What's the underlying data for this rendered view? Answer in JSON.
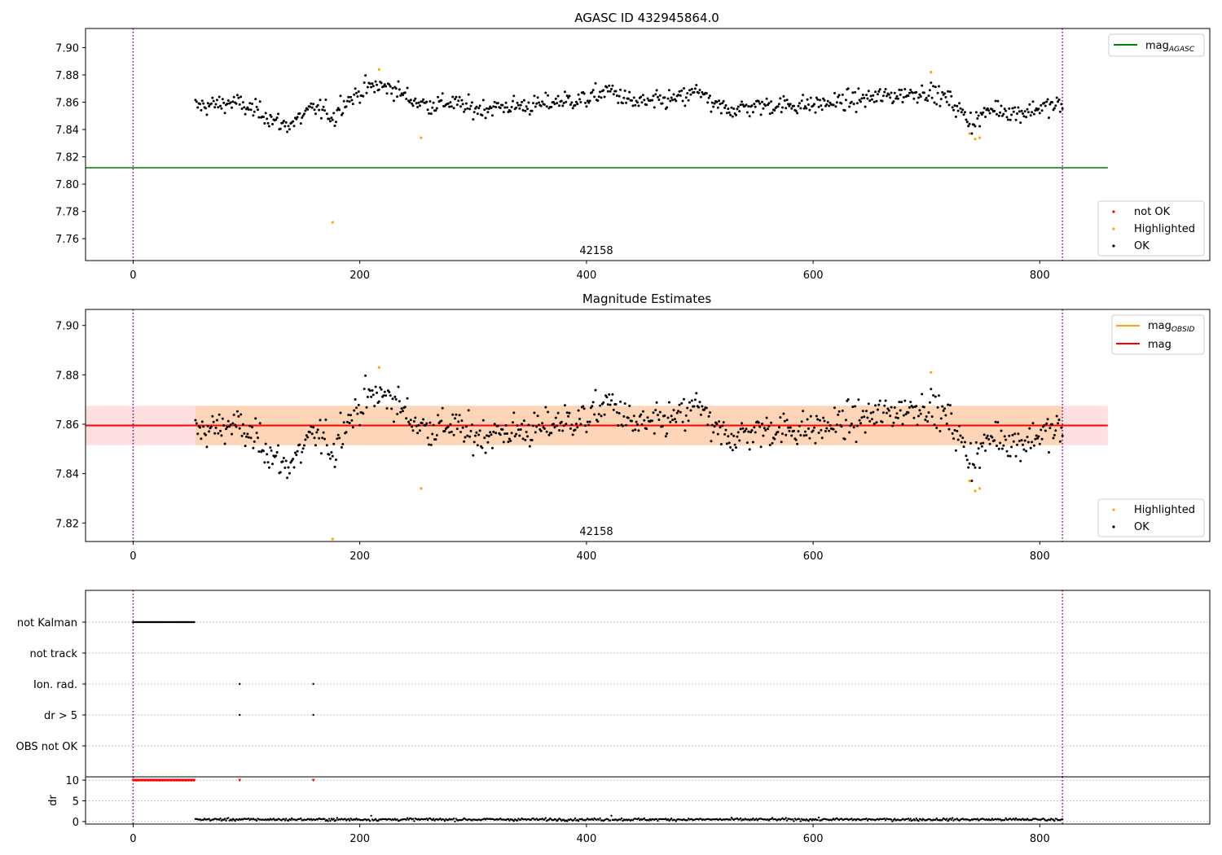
{
  "chart_data": [
    {
      "type": "scatter",
      "title": "AGASC ID 432945864.0",
      "xlim": [
        -42,
        950
      ],
      "ylim": [
        7.744,
        7.914
      ],
      "xticks": [
        0,
        200,
        400,
        600,
        800
      ],
      "yticks": [
        7.76,
        7.78,
        7.8,
        7.82,
        7.84,
        7.86,
        7.88,
        7.9
      ],
      "ytick_labels": [
        "7.76",
        "7.78",
        "7.80",
        "7.82",
        "7.84",
        "7.86",
        "7.88",
        "7.90"
      ],
      "xtick_labels": [
        "0",
        "200",
        "400",
        "600",
        "800"
      ],
      "obsid_label": "42158",
      "vlines": [
        0,
        820
      ],
      "mag_agasc": 7.812,
      "hline_xrange": [
        -42,
        860
      ],
      "legend_lines": [
        {
          "name": "mag",
          "sub": "AGASC",
          "color": "#008000"
        }
      ],
      "legend_points": [
        {
          "name": "not OK",
          "color": "#ff0000"
        },
        {
          "name": "Highlighted",
          "color": "#ffa500"
        },
        {
          "name": "OK",
          "color": "#000000"
        }
      ],
      "series": [
        {
          "name": "OK",
          "color": "#000000",
          "profile": [
            [
              55,
              7.857
            ],
            [
              70,
              7.858
            ],
            [
              90,
              7.86
            ],
            [
              100,
              7.856
            ],
            [
              115,
              7.852
            ],
            [
              125,
              7.846
            ],
            [
              135,
              7.843
            ],
            [
              145,
              7.847
            ],
            [
              160,
              7.856
            ],
            [
              170,
              7.853
            ],
            [
              178,
              7.848
            ],
            [
              182,
              7.858
            ],
            [
              195,
              7.864
            ],
            [
              205,
              7.87
            ],
            [
              215,
              7.872
            ],
            [
              230,
              7.87
            ],
            [
              245,
              7.862
            ],
            [
              260,
              7.858
            ],
            [
              280,
              7.86
            ],
            [
              300,
              7.855
            ],
            [
              330,
              7.857
            ],
            [
              360,
              7.858
            ],
            [
              375,
              7.861
            ],
            [
              400,
              7.862
            ],
            [
              420,
              7.869
            ],
            [
              440,
              7.86
            ],
            [
              460,
              7.86
            ],
            [
              490,
              7.864
            ],
            [
              500,
              7.87
            ],
            [
              510,
              7.857
            ],
            [
              530,
              7.855
            ],
            [
              560,
              7.858
            ],
            [
              600,
              7.858
            ],
            [
              640,
              7.862
            ],
            [
              680,
              7.866
            ],
            [
              700,
              7.868
            ],
            [
              720,
              7.862
            ],
            [
              740,
              7.845
            ],
            [
              760,
              7.856
            ],
            [
              780,
              7.852
            ],
            [
              800,
              7.856
            ],
            [
              820,
              7.858
            ]
          ]
        },
        {
          "name": "Highlighted",
          "color": "#ffa500",
          "x": [
            176,
            217,
            254,
            704,
            738,
            743,
            747
          ],
          "y": [
            7.772,
            7.884,
            7.834,
            7.882,
            7.837,
            7.833,
            7.834
          ]
        }
      ]
    },
    {
      "type": "scatter",
      "title": "Magnitude Estimates",
      "xlim": [
        -42,
        950
      ],
      "ylim": [
        7.8125,
        7.9065
      ],
      "xticks": [
        0,
        200,
        400,
        600,
        800
      ],
      "yticks": [
        7.82,
        7.84,
        7.86,
        7.88,
        7.9
      ],
      "ytick_labels": [
        "7.82",
        "7.84",
        "7.86",
        "7.88",
        "7.90"
      ],
      "xtick_labels": [
        "0",
        "200",
        "400",
        "600",
        "800"
      ],
      "obsid_label": "42158",
      "vlines": [
        0,
        820
      ],
      "mag": 7.8595,
      "mag_band_outer": [
        7.8515,
        7.8675
      ],
      "mag_band_inner": [
        7.8515,
        7.8675
      ],
      "mag_band_inner_xrange": [
        55,
        820
      ],
      "hline_xrange": [
        -42,
        860
      ],
      "legend_lines": [
        {
          "name": "mag",
          "sub": "OBSID",
          "color": "#ffa500"
        },
        {
          "name": "mag",
          "sub": "",
          "color": "#ff0000"
        }
      ],
      "legend_points": [
        {
          "name": "Highlighted",
          "color": "#ffa500"
        },
        {
          "name": "OK",
          "color": "#000000"
        }
      ],
      "series": [
        {
          "name": "OK",
          "color": "#000000",
          "same_as_panel": 0
        },
        {
          "name": "Highlighted",
          "color": "#ffa500",
          "x": [
            176,
            217,
            254,
            704,
            738,
            743,
            747
          ],
          "y": [
            7.8135,
            7.883,
            7.834,
            7.881,
            7.837,
            7.833,
            7.834
          ]
        }
      ]
    },
    {
      "type": "scatter",
      "title": "",
      "xlim": [
        -42,
        950
      ],
      "categories": [
        "not Kalman",
        "not track",
        "Ion. rad.",
        "dr > 5",
        "OBS not OK"
      ],
      "flags": [
        {
          "category": "not Kalman",
          "x_range": [
            0,
            54
          ]
        },
        {
          "category": "Ion. rad.",
          "x": [
            94,
            159
          ]
        },
        {
          "category": "dr > 5",
          "x": [
            94,
            159
          ]
        }
      ],
      "vlines": [
        0,
        820
      ]
    },
    {
      "type": "scatter",
      "title": "",
      "ylabel": "dr",
      "xlim": [
        -42,
        950
      ],
      "ylim": [
        -0.6,
        10.8
      ],
      "yticks": [
        0,
        5,
        10
      ],
      "ytick_labels": [
        "0",
        "5",
        "10"
      ],
      "xticks": [
        0,
        200,
        400,
        600,
        800
      ],
      "xtick_labels": [
        "0",
        "200",
        "400",
        "600",
        "800"
      ],
      "vlines": [
        0,
        820
      ],
      "dr_clipped": {
        "value": 10,
        "x_range": [
          0,
          54
        ],
        "extra_x": [
          94,
          159
        ],
        "color": "#ff0000"
      },
      "dr_series": {
        "x_range": [
          55,
          820
        ],
        "typical": 0.5,
        "color": "#000000"
      }
    }
  ]
}
